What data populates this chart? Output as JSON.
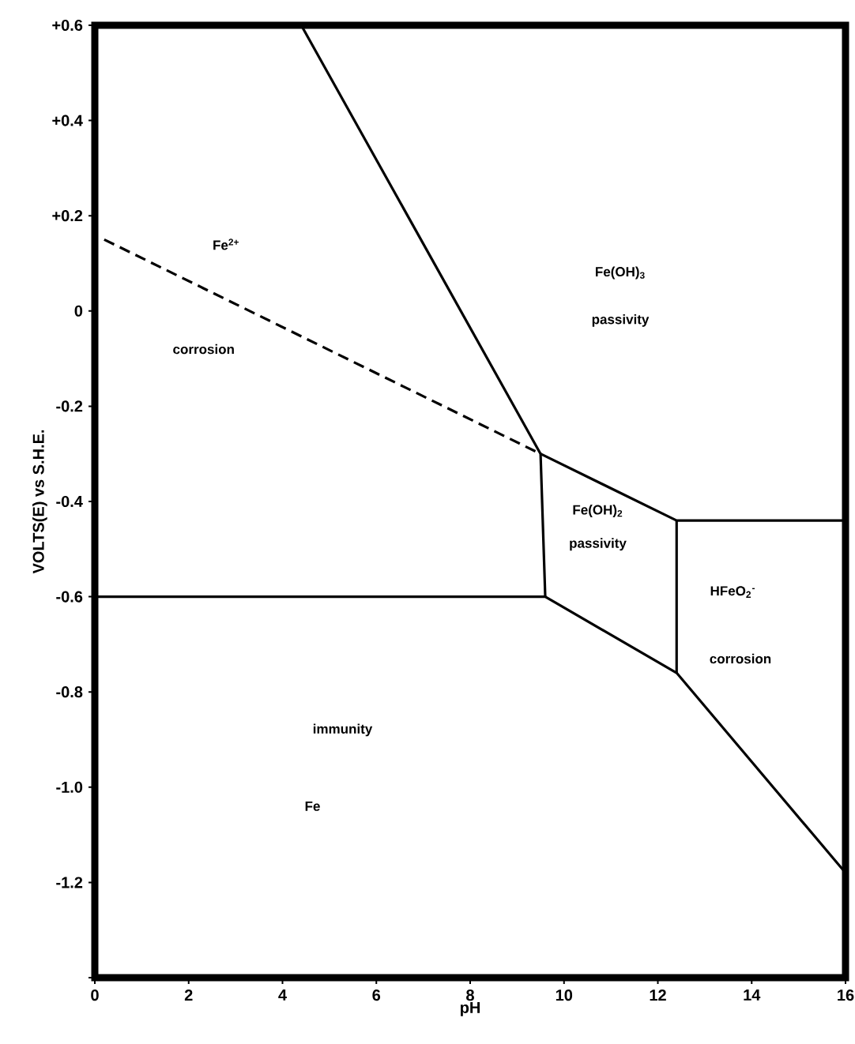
{
  "chart_data": {
    "type": "line",
    "xlabel": "pH",
    "ylabel": "VOLTS(E)    vs    S.H.E.",
    "xlim": [
      0,
      16
    ],
    "ylim": [
      -1.4,
      0.6
    ],
    "xticks": [
      0,
      2,
      4,
      6,
      8,
      10,
      12,
      14,
      16
    ],
    "yticks": [
      {
        "value": 0.6,
        "label": "+0.6"
      },
      {
        "value": 0.4,
        "label": "+0.4"
      },
      {
        "value": 0.2,
        "label": "+0.2"
      },
      0,
      -0.2,
      -0.4,
      -0.6,
      -0.8,
      {
        "value": -1.0,
        "label": "-1.0"
      },
      -1.2,
      {
        "value": -1.4,
        "label": null
      }
    ],
    "marker": "none",
    "series": [
      {
        "color": "#000000",
        "line_style": "dashed",
        "x": [
          0.2,
          9.5
        ],
        "values": [
          0.15,
          -0.3
        ]
      },
      {
        "color": "#000000",
        "line_style": "solid",
        "x": [
          4.4,
          9.5,
          9.6
        ],
        "values": [
          0.6,
          -0.3,
          -0.6
        ]
      },
      {
        "color": "#000000",
        "line_style": "solid",
        "x": [
          0,
          9.6,
          12.4,
          16
        ],
        "values": [
          -0.6,
          -0.6,
          -0.76,
          -1.18
        ]
      },
      {
        "color": "#000000",
        "line_style": "solid",
        "x": [
          9.5,
          12.4,
          16
        ],
        "values": [
          -0.3,
          -0.44,
          -0.44
        ]
      },
      {
        "color": "#000000",
        "line_style": "solid",
        "x": [
          12.4,
          12.4
        ],
        "values": [
          -0.44,
          -0.76
        ]
      }
    ],
    "annotations": [
      "Fe$^{2+}$",
      "corrosion",
      "Fe(OH)$_{3}$",
      "passivity",
      "Fe(OH)$_{2}$",
      "passivity",
      "HFeO$_{2}$$^{-}$",
      "corrosion",
      "immunity",
      "Fe"
    ]
  }
}
